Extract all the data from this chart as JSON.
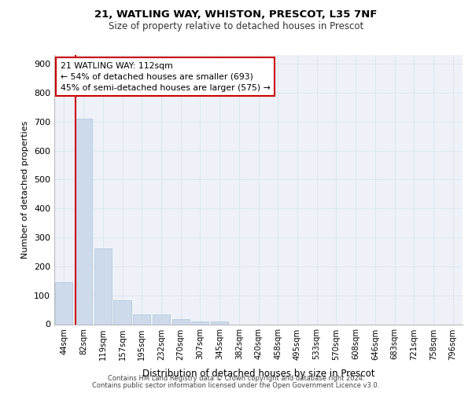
{
  "title_line1": "21, WATLING WAY, WHISTON, PRESCOT, L35 7NF",
  "title_line2": "Size of property relative to detached houses in Prescot",
  "xlabel": "Distribution of detached houses by size in Prescot",
  "ylabel": "Number of detached properties",
  "categories": [
    "44sqm",
    "82sqm",
    "119sqm",
    "157sqm",
    "195sqm",
    "232sqm",
    "270sqm",
    "307sqm",
    "345sqm",
    "382sqm",
    "420sqm",
    "458sqm",
    "495sqm",
    "533sqm",
    "570sqm",
    "608sqm",
    "646sqm",
    "683sqm",
    "721sqm",
    "758sqm",
    "796sqm"
  ],
  "values": [
    145,
    710,
    262,
    84,
    35,
    35,
    18,
    10,
    10,
    0,
    0,
    0,
    0,
    0,
    0,
    0,
    0,
    0,
    0,
    0,
    0
  ],
  "bar_color": "#ccdaeb",
  "bar_edge_color": "#b0c4d8",
  "grid_color": "#dce6f0",
  "background_color": "#eef2f8",
  "vline_color": "#cc0000",
  "vline_x": 0.575,
  "annotation_text": "21 WATLING WAY: 112sqm\n← 54% of detached houses are smaller (693)\n45% of semi-detached houses are larger (575) →",
  "annotation_box_color": "#ffffff",
  "annotation_box_edge": "#cc0000",
  "ylim": [
    0,
    930
  ],
  "yticks": [
    0,
    100,
    200,
    300,
    400,
    500,
    600,
    700,
    800,
    900
  ],
  "footer_line1": "Contains HM Land Registry data © Crown copyright and database right 2024.",
  "footer_line2": "Contains public sector information licensed under the Open Government Licence v3.0."
}
